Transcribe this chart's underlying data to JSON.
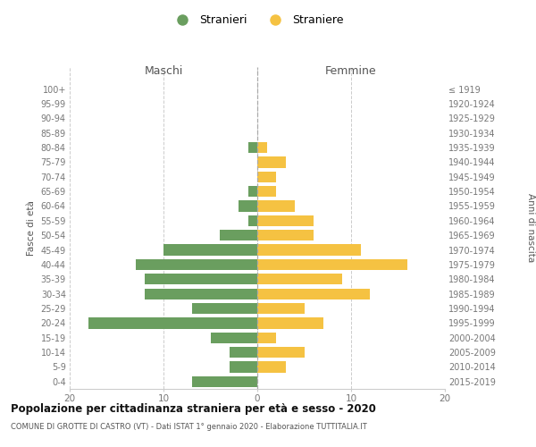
{
  "age_groups": [
    "0-4",
    "5-9",
    "10-14",
    "15-19",
    "20-24",
    "25-29",
    "30-34",
    "35-39",
    "40-44",
    "45-49",
    "50-54",
    "55-59",
    "60-64",
    "65-69",
    "70-74",
    "75-79",
    "80-84",
    "85-89",
    "90-94",
    "95-99",
    "100+"
  ],
  "birth_years": [
    "2015-2019",
    "2010-2014",
    "2005-2009",
    "2000-2004",
    "1995-1999",
    "1990-1994",
    "1985-1989",
    "1980-1984",
    "1975-1979",
    "1970-1974",
    "1965-1969",
    "1960-1964",
    "1955-1959",
    "1950-1954",
    "1945-1949",
    "1940-1944",
    "1935-1939",
    "1930-1934",
    "1925-1929",
    "1920-1924",
    "≤ 1919"
  ],
  "males": [
    7,
    3,
    3,
    5,
    18,
    7,
    12,
    12,
    13,
    10,
    4,
    1,
    2,
    1,
    0,
    0,
    1,
    0,
    0,
    0,
    0
  ],
  "females": [
    0,
    3,
    5,
    2,
    7,
    5,
    12,
    9,
    16,
    11,
    6,
    6,
    4,
    2,
    2,
    3,
    1,
    0,
    0,
    0,
    0
  ],
  "male_color": "#6a9e5f",
  "female_color": "#f5c242",
  "title": "Popolazione per cittadinanza straniera per età e sesso - 2020",
  "subtitle": "COMUNE DI GROTTE DI CASTRO (VT) - Dati ISTAT 1° gennaio 2020 - Elaborazione TUTTITALIA.IT",
  "ylabel_left": "Fasce di età",
  "ylabel_right": "Anni di nascita",
  "xlabel_left": "Maschi",
  "xlabel_right": "Femmine",
  "legend_stranieri": "Stranieri",
  "legend_straniere": "Straniere",
  "xlim": 20,
  "background_color": "#ffffff",
  "grid_color": "#cccccc",
  "bar_height": 0.75
}
